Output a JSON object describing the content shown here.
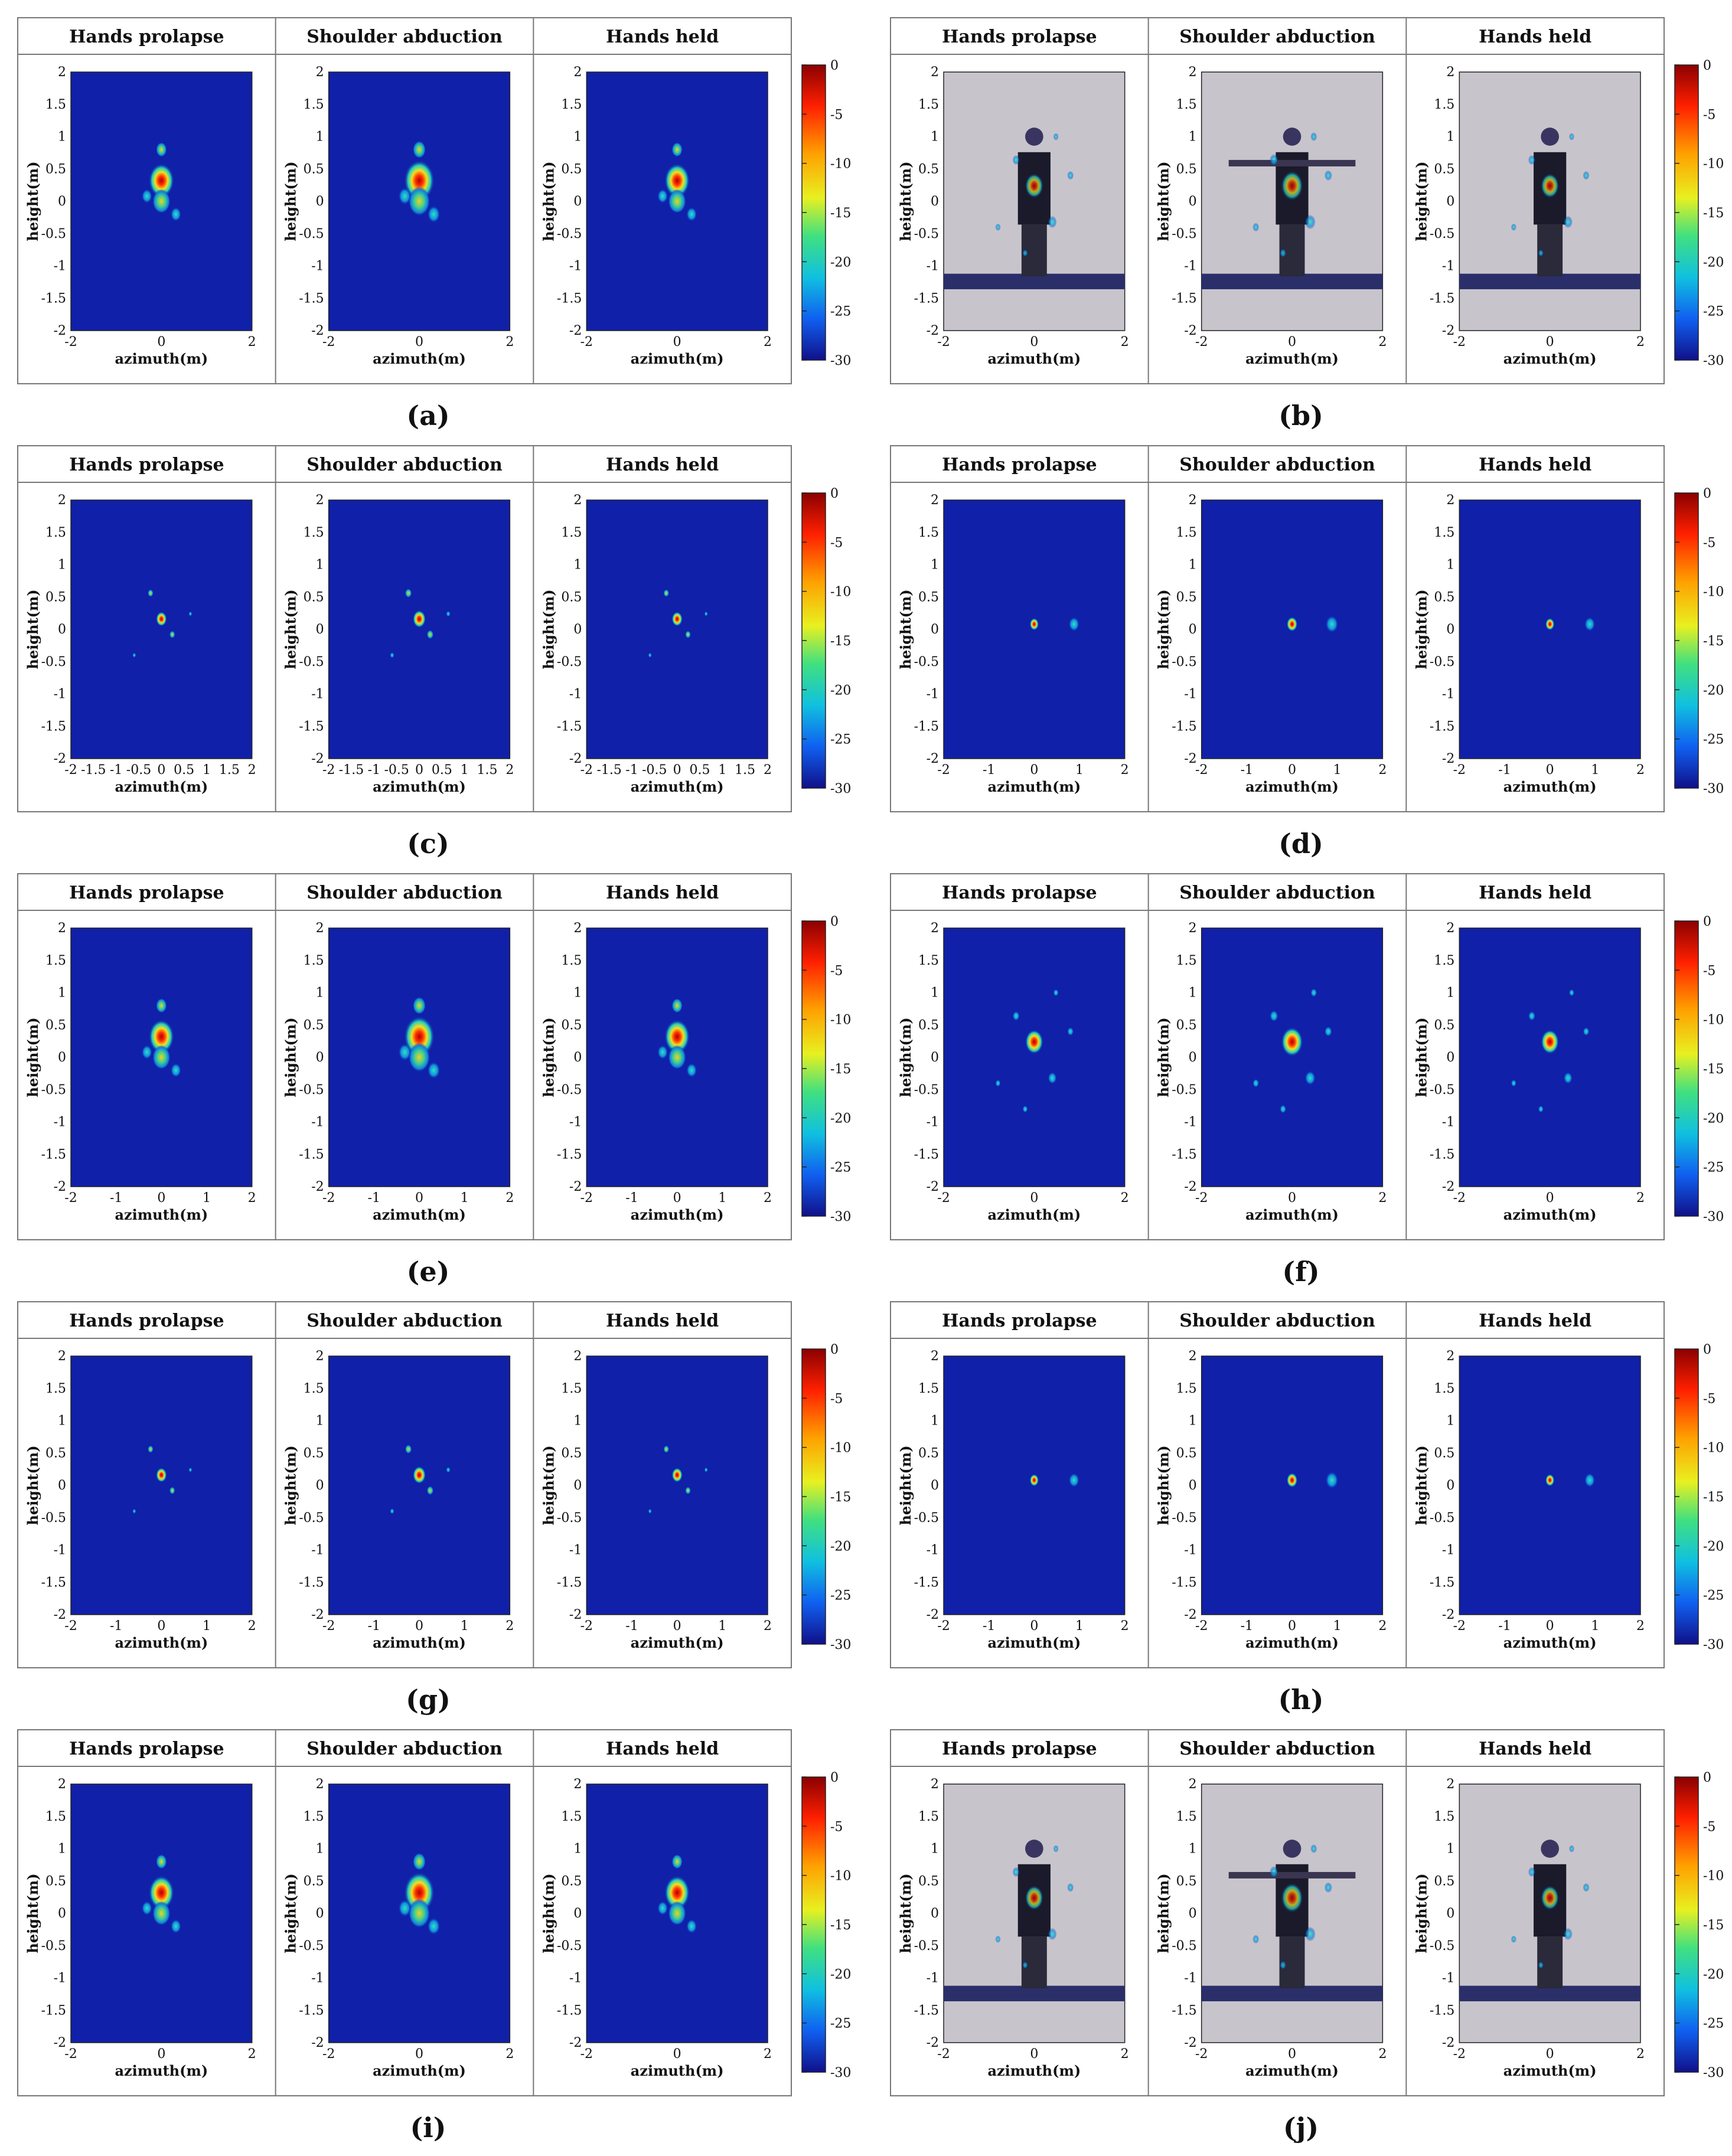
{
  "figure": {
    "panel_titles": [
      "Hands prolapse",
      "Shoulder abduction",
      "Hands held"
    ],
    "xlabel": "azimuth(m)",
    "ylabel": "height(m)",
    "colorbar_ticks": [
      "0",
      "-5",
      "-10",
      "-15",
      "-20",
      "-25",
      "-30"
    ],
    "colors": {
      "background_map": "#1020a8",
      "hot": "#c01010",
      "warm": "#f0e020",
      "cool": "#20c0d0"
    }
  },
  "chart_data": [
    {
      "type": "heatmap",
      "label": "a",
      "subplots": [
        "Hands prolapse",
        "Shoulder abduction",
        "Hands held"
      ],
      "xlabel": "azimuth(m)",
      "ylabel": "height(m)",
      "xlim": [
        -2,
        2
      ],
      "ylim": [
        -2,
        2
      ],
      "xticks": [
        "-2",
        "0",
        "2"
      ],
      "yticks": [
        "2",
        "1.5",
        "1",
        "0.5",
        "0",
        "-0.5",
        "-1",
        "-1.5",
        "-2"
      ],
      "colorbar": {
        "min": -30,
        "max": 0,
        "ticks": [
          "0",
          "-5",
          "-10",
          "-15",
          "-20",
          "-25",
          "-30"
        ]
      },
      "photo_overlay": false
    },
    {
      "type": "heatmap",
      "label": "b",
      "subplots": [
        "Hands prolapse",
        "Shoulder abduction",
        "Hands held"
      ],
      "xlabel": "azimuth(m)",
      "ylabel": "height(m)",
      "xlim": [
        -2,
        2
      ],
      "ylim": [
        -2,
        2
      ],
      "xticks": [
        "-2",
        "0",
        "2"
      ],
      "yticks": [
        "2",
        "1.5",
        "1",
        "0.5",
        "0",
        "-0.5",
        "-1",
        "-1.5",
        "-2"
      ],
      "colorbar": {
        "min": -30,
        "max": 0,
        "ticks": [
          "0",
          "-5",
          "-10",
          "-15",
          "-20",
          "-25",
          "-30"
        ]
      },
      "photo_overlay": true
    },
    {
      "type": "heatmap",
      "label": "c",
      "subplots": [
        "Hands prolapse",
        "Shoulder abduction",
        "Hands held"
      ],
      "xlabel": "azimuth(m)",
      "ylabel": "height(m)",
      "xlim": [
        -2,
        2
      ],
      "ylim": [
        -2,
        2
      ],
      "xticks": [
        "-2",
        "-1.5",
        "-1",
        "-0.5",
        "0",
        "0.5",
        "1",
        "1.5",
        "2"
      ],
      "yticks": [
        "2",
        "1.5",
        "1",
        "0.5",
        "0",
        "-0.5",
        "-1",
        "-1.5",
        "-2"
      ],
      "colorbar": {
        "min": -30,
        "max": 0,
        "ticks": [
          "0",
          "-5",
          "-10",
          "-15",
          "-20",
          "-25",
          "-30"
        ]
      },
      "photo_overlay": false
    },
    {
      "type": "heatmap",
      "label": "d",
      "subplots": [
        "Hands prolapse",
        "Shoulder abduction",
        "Hands held"
      ],
      "xlabel": "azimuth(m)",
      "ylabel": "height(m)",
      "xlim": [
        -2,
        2
      ],
      "ylim": [
        -2,
        2
      ],
      "xticks": [
        "-2",
        "-1",
        "0",
        "1",
        "2"
      ],
      "yticks": [
        "2",
        "1.5",
        "1",
        "0.5",
        "0",
        "-0.5",
        "-1",
        "-1.5",
        "-2"
      ],
      "colorbar": {
        "min": -30,
        "max": 0,
        "ticks": [
          "0",
          "-5",
          "-10",
          "-15",
          "-20",
          "-25",
          "-30"
        ]
      },
      "photo_overlay": false
    },
    {
      "type": "heatmap",
      "label": "e",
      "subplots": [
        "Hands prolapse",
        "Shoulder abduction",
        "Hands held"
      ],
      "xlabel": "azimuth(m)",
      "ylabel": "height(m)",
      "xlim": [
        -2,
        2
      ],
      "ylim": [
        -2,
        2
      ],
      "xticks": [
        "-2",
        "-1",
        "0",
        "1",
        "2"
      ],
      "yticks": [
        "2",
        "1.5",
        "1",
        "0.5",
        "0",
        "-0.5",
        "-1",
        "-1.5",
        "-2"
      ],
      "colorbar": {
        "min": -30,
        "max": 0,
        "ticks": [
          "0",
          "-5",
          "-10",
          "-15",
          "-20",
          "-25",
          "-30"
        ]
      },
      "photo_overlay": false
    },
    {
      "type": "heatmap",
      "label": "f",
      "subplots": [
        "Hands prolapse",
        "Shoulder abduction",
        "Hands held"
      ],
      "xlabel": "azimuth(m)",
      "ylabel": "height(m)",
      "xlim": [
        -2,
        2
      ],
      "ylim": [
        -2,
        2
      ],
      "xticks": [
        "-2",
        "0",
        "2"
      ],
      "yticks": [
        "2",
        "1.5",
        "1",
        "0.5",
        "0",
        "-0.5",
        "-1",
        "-1.5",
        "-2"
      ],
      "colorbar": {
        "min": -30,
        "max": 0,
        "ticks": [
          "0",
          "-5",
          "-10",
          "-15",
          "-20",
          "-25",
          "-30"
        ]
      },
      "photo_overlay": false
    },
    {
      "type": "heatmap",
      "label": "g",
      "subplots": [
        "Hands prolapse",
        "Shoulder abduction",
        "Hands held"
      ],
      "xlabel": "azimuth(m)",
      "ylabel": "height(m)",
      "xlim": [
        -2,
        2
      ],
      "ylim": [
        -2,
        2
      ],
      "xticks": [
        "-2",
        "-1",
        "0",
        "1",
        "2"
      ],
      "yticks": [
        "2",
        "1.5",
        "1",
        "0.5",
        "0",
        "-0.5",
        "-1",
        "-1.5",
        "-2"
      ],
      "colorbar": {
        "min": -30,
        "max": 0,
        "ticks": [
          "0",
          "-5",
          "-10",
          "-15",
          "-20",
          "-25",
          "-30"
        ]
      },
      "photo_overlay": false
    },
    {
      "type": "heatmap",
      "label": "h",
      "subplots": [
        "Hands prolapse",
        "Shoulder abduction",
        "Hands held"
      ],
      "xlabel": "azimuth(m)",
      "ylabel": "height(m)",
      "xlim": [
        -2,
        2
      ],
      "ylim": [
        -2,
        2
      ],
      "xticks": [
        "-2",
        "-1",
        "0",
        "1",
        "2"
      ],
      "yticks": [
        "2",
        "1.5",
        "1",
        "0.5",
        "0",
        "-0.5",
        "-1",
        "-1.5",
        "-2"
      ],
      "colorbar": {
        "min": -30,
        "max": 0,
        "ticks": [
          "0",
          "-5",
          "-10",
          "-15",
          "-20",
          "-25",
          "-30"
        ]
      },
      "photo_overlay": false
    },
    {
      "type": "heatmap",
      "label": "i",
      "subplots": [
        "Hands prolapse",
        "Shoulder abduction",
        "Hands held"
      ],
      "xlabel": "azimuth(m)",
      "ylabel": "height(m)",
      "xlim": [
        -2,
        2
      ],
      "ylim": [
        -2,
        2
      ],
      "xticks": [
        "-2",
        "0",
        "2"
      ],
      "yticks": [
        "2",
        "1.5",
        "1",
        "0.5",
        "0",
        "-0.5",
        "-1",
        "-1.5",
        "-2"
      ],
      "colorbar": {
        "min": -30,
        "max": 0,
        "ticks": [
          "0",
          "-5",
          "-10",
          "-15",
          "-20",
          "-25",
          "-30"
        ]
      },
      "photo_overlay": false
    },
    {
      "type": "heatmap",
      "label": "j",
      "subplots": [
        "Hands prolapse",
        "Shoulder abduction",
        "Hands held"
      ],
      "xlabel": "azimuth(m)",
      "ylabel": "height(m)",
      "xlim": [
        -2,
        2
      ],
      "ylim": [
        -2,
        2
      ],
      "xticks": [
        "-2",
        "0",
        "2"
      ],
      "yticks": [
        "2",
        "1.5",
        "1",
        "0.5",
        "0",
        "-0.5",
        "-1",
        "-1.5",
        "-2"
      ],
      "colorbar": {
        "min": -30,
        "max": 0,
        "ticks": [
          "0",
          "-5",
          "-10",
          "-15",
          "-20",
          "-25",
          "-30"
        ]
      },
      "photo_overlay": true
    }
  ]
}
